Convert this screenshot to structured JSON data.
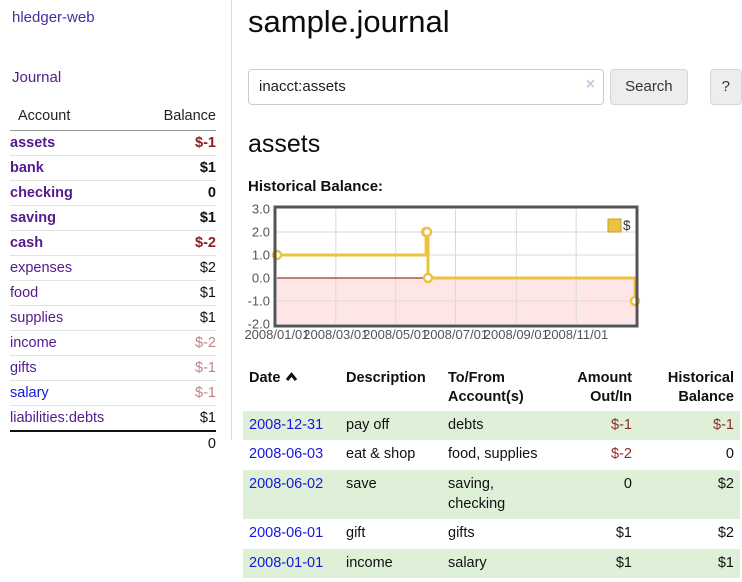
{
  "colors": {
    "link_purple": "#551a8b",
    "link_blue": "#1616dd",
    "negative_strong": "#8e1b1b",
    "negative_soft": "#c28282",
    "row_stripe_green": "#dff0d8",
    "series_gold": "#edc240"
  },
  "sidebar": {
    "brand": "hledger-web",
    "journal_label": "Journal",
    "accounts_table": {
      "headers": [
        "Account",
        "Balance"
      ],
      "rows": [
        {
          "account": "assets",
          "indent": 1,
          "bold": true,
          "link_style": "purple",
          "balance": "$-1",
          "balance_style": "neg"
        },
        {
          "account": "bank",
          "indent": 2,
          "bold": true,
          "link_style": "purple",
          "balance": "$1",
          "balance_style": "pos"
        },
        {
          "account": "checking",
          "indent": 3,
          "bold": true,
          "link_style": "purple",
          "balance": "0",
          "balance_style": "pos"
        },
        {
          "account": "saving",
          "indent": 3,
          "bold": true,
          "link_style": "purple",
          "balance": "$1",
          "balance_style": "pos"
        },
        {
          "account": "cash",
          "indent": 2,
          "bold": true,
          "link_style": "purple",
          "balance": "$-2",
          "balance_style": "neg"
        },
        {
          "account": "expenses",
          "indent": 1,
          "bold": false,
          "link_style": "purple",
          "balance": "$2",
          "balance_style": "pos"
        },
        {
          "account": "food",
          "indent": 2,
          "bold": false,
          "link_style": "purple",
          "balance": "$1",
          "balance_style": "pos"
        },
        {
          "account": "supplies",
          "indent": 2,
          "bold": false,
          "link_style": "purple",
          "balance": "$1",
          "balance_style": "pos"
        },
        {
          "account": "income",
          "indent": 1,
          "bold": false,
          "link_style": "purple",
          "balance": "$-2",
          "balance_style": "neg-soft"
        },
        {
          "account": "gifts",
          "indent": 2,
          "bold": false,
          "link_style": "purple",
          "balance": "$-1",
          "balance_style": "neg-soft"
        },
        {
          "account": "salary",
          "indent": 2,
          "bold": false,
          "link_style": "blue",
          "balance": "$-1",
          "balance_style": "neg-soft"
        },
        {
          "account": "liabilities:debts",
          "indent": 1,
          "bold": false,
          "link_style": "purple",
          "balance": "$1",
          "balance_style": "pos"
        }
      ],
      "total": "0"
    }
  },
  "main": {
    "title": "sample.journal",
    "search": {
      "value": "inacct:assets",
      "clear_icon": "×",
      "button_label": "Search",
      "help_label": "?"
    },
    "account_heading": "assets",
    "register_table": {
      "headers": {
        "date": "Date",
        "sort_direction": "ascending",
        "description": "Description",
        "tofrom": "To/From Account(s)",
        "amount": "Amount Out/In",
        "balance": "Historical Balance"
      },
      "rows": [
        {
          "date": "2008-12-31",
          "description": "pay off",
          "accounts": "debts",
          "amount": "$-1",
          "amount_negative": true,
          "balance": "$-1",
          "balance_negative": true,
          "shaded": true
        },
        {
          "date": "2008-06-03",
          "description": "eat & shop",
          "accounts": "food, supplies",
          "amount": "$-2",
          "amount_negative": true,
          "balance": "0",
          "balance_negative": false,
          "shaded": false
        },
        {
          "date": "2008-06-02",
          "description": "save",
          "accounts": "saving, checking",
          "amount": "0",
          "amount_negative": false,
          "balance": "$2",
          "balance_negative": false,
          "shaded": true
        },
        {
          "date": "2008-06-01",
          "description": "gift",
          "accounts": "gifts",
          "amount": "$1",
          "amount_negative": false,
          "balance": "$2",
          "balance_negative": false,
          "shaded": false
        },
        {
          "date": "2008-01-01",
          "description": "income",
          "accounts": "salary",
          "amount": "$1",
          "amount_negative": false,
          "balance": "$1",
          "balance_negative": false,
          "shaded": true
        }
      ]
    }
  },
  "chart_data": {
    "type": "line",
    "title": "Historical Balance:",
    "x_range": [
      "2008-01-01",
      "2008-12-31"
    ],
    "y_range": [
      -2,
      3
    ],
    "y_ticks": [
      {
        "value": 3,
        "label": "3.0"
      },
      {
        "value": 2,
        "label": "2.0"
      },
      {
        "value": 1,
        "label": "1.0"
      },
      {
        "value": 0,
        "label": "0.0"
      },
      {
        "value": -1,
        "label": "-1.0"
      },
      {
        "value": -2,
        "label": "-2.0"
      }
    ],
    "x_ticks": [
      {
        "date": "2008-01-01",
        "label": "2008/01/01"
      },
      {
        "date": "2008-03-01",
        "label": "2008/03/01"
      },
      {
        "date": "2008-05-01",
        "label": "2008/05/01"
      },
      {
        "date": "2008-07-01",
        "label": "2008/07/01"
      },
      {
        "date": "2008-09-01",
        "label": "2008/09/01"
      },
      {
        "date": "2008-11-01",
        "label": "2008/11/01"
      }
    ],
    "series": [
      {
        "name": "$",
        "color": "#edc240",
        "marker_fill": "#ffffff",
        "steps": true,
        "points": [
          {
            "x": "2008-01-01",
            "y": 1
          },
          {
            "x": "2008-06-01",
            "y": 2
          },
          {
            "x": "2008-06-02",
            "y": 2
          },
          {
            "x": "2008-06-03",
            "y": 0
          },
          {
            "x": "2008-12-31",
            "y": -1
          }
        ]
      }
    ],
    "legend": {
      "label": "$",
      "position": "top-right",
      "swatch_border": "#c29d37"
    },
    "grid": {
      "line_color": "#d9d9d9",
      "border_color": "#545454",
      "zero_line_color": "#8b0000",
      "negative_region_fill": "rgba(255,60,60,0.13)",
      "tick_label_color": "#545454"
    }
  }
}
